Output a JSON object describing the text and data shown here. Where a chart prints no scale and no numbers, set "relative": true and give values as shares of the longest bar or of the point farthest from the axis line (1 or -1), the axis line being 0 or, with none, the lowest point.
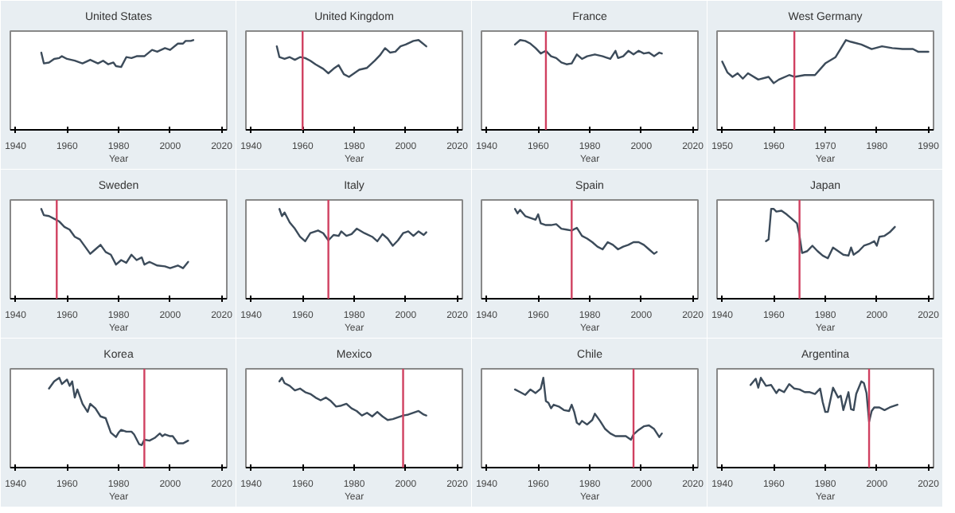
{
  "chart_data": [
    {
      "type": "line",
      "title": "United States",
      "xlabel": "Year",
      "relative": true,
      "xlim": [
        1938,
        2022
      ],
      "xticks": [
        1940,
        1960,
        1980,
        2000,
        2020
      ],
      "series": [
        {
          "color": "#3c4b5a",
          "x": [
            1950,
            1951,
            1953,
            1955,
            1957,
            1958,
            1960,
            1963,
            1966,
            1969,
            1972,
            1974,
            1976,
            1978,
            1979,
            1981,
            1983,
            1985,
            1987,
            1990,
            1993,
            1995,
            1998,
            2000,
            2003,
            2005,
            2006,
            2008,
            2009
          ],
          "values": [
            0.86,
            0.74,
            0.75,
            0.79,
            0.8,
            0.82,
            0.79,
            0.77,
            0.74,
            0.78,
            0.74,
            0.77,
            0.73,
            0.75,
            0.71,
            0.7,
            0.81,
            0.8,
            0.82,
            0.82,
            0.89,
            0.87,
            0.91,
            0.89,
            0.96,
            0.96,
            0.99,
            0.99,
            1
          ]
        }
      ]
    },
    {
      "type": "line",
      "title": "United Kingdom",
      "xlabel": "Year",
      "relative": true,
      "xlim": [
        1938,
        2022
      ],
      "xticks": [
        1940,
        1960,
        1980,
        2000,
        2020
      ],
      "ref_lines": [
        {
          "axis": "x",
          "value": 1960,
          "color": "#d04060"
        }
      ],
      "series": [
        {
          "color": "#3c4b5a",
          "x": [
            1950,
            1951,
            1953,
            1955,
            1957,
            1959,
            1961,
            1963,
            1965,
            1968,
            1970,
            1972,
            1974,
            1976,
            1978,
            1980,
            1982,
            1985,
            1988,
            1990,
            1992,
            1994,
            1996,
            1998,
            2000,
            2003,
            2005,
            2008
          ],
          "values": [
            0.93,
            0.81,
            0.79,
            0.81,
            0.78,
            0.81,
            0.8,
            0.77,
            0.73,
            0.68,
            0.63,
            0.68,
            0.72,
            0.62,
            0.59,
            0.63,
            0.67,
            0.69,
            0.77,
            0.83,
            0.91,
            0.86,
            0.87,
            0.93,
            0.95,
            0.99,
            1,
            0.93
          ]
        }
      ]
    },
    {
      "type": "line",
      "title": "France",
      "xlabel": "Year",
      "relative": true,
      "xlim": [
        1938,
        2022
      ],
      "xticks": [
        1940,
        1960,
        1980,
        2000,
        2020
      ],
      "ref_lines": [
        {
          "axis": "x",
          "value": 1963,
          "color": "#d04060"
        }
      ],
      "series": [
        {
          "color": "#3c4b5a",
          "x": [
            1951,
            1953,
            1955,
            1957,
            1959,
            1961,
            1963,
            1965,
            1967,
            1969,
            1971,
            1973,
            1975,
            1977,
            1979,
            1982,
            1985,
            1988,
            1990,
            1991,
            1993,
            1995,
            1997,
            1999,
            2001,
            2003,
            2005,
            2007,
            2008
          ],
          "values": [
            0.95,
            1,
            0.99,
            0.96,
            0.91,
            0.85,
            0.88,
            0.82,
            0.8,
            0.75,
            0.73,
            0.74,
            0.84,
            0.79,
            0.82,
            0.84,
            0.82,
            0.79,
            0.88,
            0.8,
            0.82,
            0.88,
            0.84,
            0.88,
            0.85,
            0.86,
            0.82,
            0.86,
            0.85
          ]
        }
      ]
    },
    {
      "type": "line",
      "title": "West Germany",
      "xlabel": "Year",
      "relative": true,
      "xlim": [
        1949,
        1991
      ],
      "xticks": [
        1950,
        1960,
        1970,
        1980,
        1990
      ],
      "ref_lines": [
        {
          "axis": "x",
          "value": 1964,
          "color": "#d04060"
        }
      ],
      "series": [
        {
          "color": "#3c4b5a",
          "x": [
            1950,
            1951,
            1952,
            1953,
            1954,
            1955,
            1957,
            1959,
            1960,
            1961,
            1963,
            1964,
            1966,
            1968,
            1970,
            1972,
            1974,
            1975,
            1977,
            1979,
            1981,
            1983,
            1985,
            1987,
            1988,
            1990
          ],
          "values": [
            0.76,
            0.64,
            0.59,
            0.63,
            0.57,
            0.63,
            0.56,
            0.59,
            0.52,
            0.56,
            0.61,
            0.59,
            0.61,
            0.61,
            0.74,
            0.81,
            1,
            0.98,
            0.95,
            0.9,
            0.93,
            0.91,
            0.9,
            0.9,
            0.87,
            0.87
          ]
        }
      ]
    },
    {
      "type": "line",
      "title": "Sweden",
      "xlabel": "Year",
      "relative": true,
      "xlim": [
        1938,
        2022
      ],
      "xticks": [
        1940,
        1960,
        1980,
        2000,
        2020
      ],
      "ref_lines": [
        {
          "axis": "x",
          "value": 1956,
          "color": "#d04060"
        }
      ],
      "series": [
        {
          "color": "#3c4b5a",
          "x": [
            1950,
            1951,
            1953,
            1955,
            1957,
            1959,
            1961,
            1963,
            1965,
            1967,
            1969,
            1971,
            1973,
            1975,
            1977,
            1979,
            1981,
            1983,
            1985,
            1987,
            1989,
            1990,
            1992,
            1995,
            1998,
            2000,
            2003,
            2005,
            2007
          ],
          "values": [
            1,
            0.93,
            0.92,
            0.89,
            0.86,
            0.8,
            0.77,
            0.69,
            0.66,
            0.58,
            0.5,
            0.55,
            0.6,
            0.52,
            0.49,
            0.38,
            0.43,
            0.4,
            0.49,
            0.43,
            0.46,
            0.38,
            0.41,
            0.37,
            0.36,
            0.34,
            0.37,
            0.34,
            0.41
          ]
        }
      ]
    },
    {
      "type": "line",
      "title": "Italy",
      "xlabel": "Year",
      "relative": true,
      "xlim": [
        1938,
        2022
      ],
      "xticks": [
        1940,
        1960,
        1980,
        2000,
        2020
      ],
      "ref_lines": [
        {
          "axis": "x",
          "value": 1970,
          "color": "#d04060"
        }
      ],
      "series": [
        {
          "color": "#3c4b5a",
          "x": [
            1951,
            1952,
            1953,
            1955,
            1957,
            1959,
            1961,
            1963,
            1966,
            1968,
            1970,
            1972,
            1974,
            1975,
            1977,
            1979,
            1981,
            1984,
            1987,
            1989,
            1991,
            1993,
            1995,
            1997,
            1999,
            2001,
            2003,
            2005,
            2007,
            2008
          ],
          "values": [
            1,
            0.92,
            0.96,
            0.85,
            0.78,
            0.69,
            0.64,
            0.73,
            0.76,
            0.73,
            0.65,
            0.71,
            0.7,
            0.75,
            0.7,
            0.72,
            0.78,
            0.73,
            0.69,
            0.64,
            0.72,
            0.67,
            0.59,
            0.65,
            0.73,
            0.75,
            0.7,
            0.75,
            0.71,
            0.74
          ]
        }
      ]
    },
    {
      "type": "line",
      "title": "Spain",
      "xlabel": "Year",
      "relative": true,
      "xlim": [
        1938,
        2022
      ],
      "xticks": [
        1940,
        1960,
        1980,
        2000,
        2020
      ],
      "ref_lines": [
        {
          "axis": "x",
          "value": 1973,
          "color": "#d04060"
        }
      ],
      "series": [
        {
          "color": "#3c4b5a",
          "x": [
            1951,
            1952,
            1953,
            1955,
            1957,
            1959,
            1960,
            1961,
            1963,
            1965,
            1967,
            1969,
            1971,
            1973,
            1975,
            1977,
            1979,
            1981,
            1983,
            1985,
            1987,
            1989,
            1991,
            1993,
            1995,
            1997,
            1999,
            2001,
            2003,
            2005,
            2006
          ],
          "values": [
            1,
            0.95,
            0.99,
            0.92,
            0.9,
            0.88,
            0.94,
            0.84,
            0.82,
            0.82,
            0.83,
            0.78,
            0.77,
            0.76,
            0.79,
            0.7,
            0.67,
            0.63,
            0.58,
            0.55,
            0.63,
            0.6,
            0.55,
            0.58,
            0.6,
            0.63,
            0.63,
            0.6,
            0.55,
            0.5,
            0.52
          ]
        }
      ]
    },
    {
      "type": "line",
      "title": "Japan",
      "xlabel": "Year",
      "relative": true,
      "xlim": [
        1938,
        2022
      ],
      "xticks": [
        1940,
        1960,
        1980,
        2000,
        2020
      ],
      "ref_lines": [
        {
          "axis": "x",
          "value": 1970,
          "color": "#d04060"
        }
      ],
      "series": [
        {
          "color": "#3c4b5a",
          "x": [
            1957,
            1958,
            1959,
            1960,
            1961,
            1963,
            1965,
            1967,
            1969,
            1970,
            1971,
            1973,
            1975,
            1977,
            1979,
            1981,
            1983,
            1985,
            1987,
            1989,
            1990,
            1991,
            1993,
            1995,
            1997,
            1999,
            2000,
            2001,
            2003,
            2005,
            2007
          ],
          "values": [
            0.64,
            0.66,
            1,
            1,
            0.97,
            0.98,
            0.94,
            0.89,
            0.84,
            0.7,
            0.51,
            0.53,
            0.59,
            0.53,
            0.48,
            0.45,
            0.57,
            0.53,
            0.49,
            0.48,
            0.57,
            0.49,
            0.53,
            0.59,
            0.61,
            0.64,
            0.59,
            0.69,
            0.7,
            0.74,
            0.8
          ]
        }
      ]
    },
    {
      "type": "line",
      "title": "Korea",
      "xlabel": "Year",
      "relative": true,
      "xlim": [
        1938,
        2022
      ],
      "xticks": [
        1940,
        1960,
        1980,
        2000,
        2020
      ],
      "ref_lines": [
        {
          "axis": "x",
          "value": 1990,
          "color": "#d04060"
        }
      ],
      "series": [
        {
          "color": "#3c4b5a",
          "x": [
            1953,
            1955,
            1957,
            1958,
            1960,
            1961,
            1962,
            1963,
            1964,
            1966,
            1968,
            1969,
            1971,
            1973,
            1975,
            1977,
            1979,
            1980,
            1981,
            1983,
            1985,
            1986,
            1988,
            1989,
            1990,
            1992,
            1994,
            1996,
            1997,
            1998,
            2000,
            2001,
            2003,
            2005,
            2007
          ],
          "values": [
            0.88,
            0.96,
            1,
            0.93,
            0.98,
            0.91,
            0.96,
            0.78,
            0.87,
            0.71,
            0.62,
            0.71,
            0.66,
            0.57,
            0.55,
            0.39,
            0.34,
            0.39,
            0.42,
            0.4,
            0.4,
            0.37,
            0.26,
            0.25,
            0.31,
            0.3,
            0.33,
            0.38,
            0.35,
            0.37,
            0.35,
            0.35,
            0.27,
            0.27,
            0.3
          ]
        }
      ]
    },
    {
      "type": "line",
      "title": "Mexico",
      "xlabel": "Year",
      "relative": true,
      "xlim": [
        1938,
        2022
      ],
      "xticks": [
        1940,
        1960,
        1980,
        2000,
        2020
      ],
      "ref_lines": [
        {
          "axis": "x",
          "value": 1999,
          "color": "#d04060"
        }
      ],
      "series": [
        {
          "color": "#3c4b5a",
          "x": [
            1951,
            1952,
            1953,
            1955,
            1957,
            1959,
            1961,
            1963,
            1965,
            1967,
            1969,
            1971,
            1973,
            1975,
            1977,
            1979,
            1981,
            1983,
            1985,
            1987,
            1989,
            1991,
            1993,
            1995,
            1997,
            1999,
            2001,
            2003,
            2005,
            2007,
            2008
          ],
          "values": [
            0.96,
            1,
            0.94,
            0.91,
            0.86,
            0.88,
            0.84,
            0.82,
            0.78,
            0.75,
            0.78,
            0.74,
            0.68,
            0.69,
            0.71,
            0.66,
            0.63,
            0.58,
            0.61,
            0.57,
            0.62,
            0.57,
            0.53,
            0.54,
            0.56,
            0.58,
            0.59,
            0.61,
            0.63,
            0.59,
            0.58
          ]
        }
      ]
    },
    {
      "type": "line",
      "title": "Chile",
      "xlabel": "Year",
      "relative": true,
      "xlim": [
        1938,
        2022
      ],
      "xticks": [
        1940,
        1960,
        1980,
        2000,
        2020
      ],
      "ref_lines": [
        {
          "axis": "x",
          "value": 1997,
          "color": "#d04060"
        }
      ],
      "series": [
        {
          "color": "#3c4b5a",
          "x": [
            1951,
            1953,
            1955,
            1957,
            1959,
            1961,
            1962,
            1963,
            1964,
            1965,
            1966,
            1968,
            1970,
            1972,
            1973,
            1974,
            1975,
            1976,
            1977,
            1979,
            1981,
            1982,
            1984,
            1986,
            1988,
            1990,
            1992,
            1994,
            1996,
            1997,
            1999,
            2001,
            2003,
            2005,
            2007,
            2008
          ],
          "values": [
            0.87,
            0.84,
            0.81,
            0.87,
            0.83,
            0.88,
            1,
            0.74,
            0.72,
            0.66,
            0.7,
            0.68,
            0.64,
            0.63,
            0.7,
            0.62,
            0.5,
            0.48,
            0.52,
            0.48,
            0.53,
            0.6,
            0.52,
            0.43,
            0.38,
            0.35,
            0.35,
            0.35,
            0.31,
            0.37,
            0.42,
            0.46,
            0.47,
            0.43,
            0.34,
            0.38
          ]
        }
      ]
    },
    {
      "type": "line",
      "title": "Argentina",
      "xlabel": "Year",
      "relative": true,
      "xlim": [
        1938,
        2022
      ],
      "xticks": [
        1940,
        1960,
        1980,
        2000,
        2020
      ],
      "ref_lines": [
        {
          "axis": "x",
          "value": 1997,
          "color": "#d04060"
        }
      ],
      "series": [
        {
          "color": "#3c4b5a",
          "x": [
            1951,
            1953,
            1954,
            1955,
            1957,
            1959,
            1961,
            1962,
            1964,
            1966,
            1968,
            1970,
            1972,
            1974,
            1976,
            1978,
            1979,
            1980,
            1981,
            1983,
            1985,
            1986,
            1987,
            1989,
            1990,
            1991,
            1992,
            1994,
            1995,
            1996,
            1997,
            1998,
            1999,
            2001,
            2003,
            2005,
            2007,
            2008
          ],
          "values": [
            0.92,
            0.99,
            0.89,
            1,
            0.91,
            0.92,
            0.83,
            0.87,
            0.84,
            0.93,
            0.88,
            0.87,
            0.84,
            0.84,
            0.82,
            0.88,
            0.73,
            0.62,
            0.62,
            0.89,
            0.78,
            0.8,
            0.64,
            0.84,
            0.65,
            0.64,
            0.82,
            0.96,
            0.94,
            0.83,
            0.51,
            0.63,
            0.67,
            0.67,
            0.64,
            0.67,
            0.69,
            0.7
          ]
        }
      ]
    }
  ]
}
